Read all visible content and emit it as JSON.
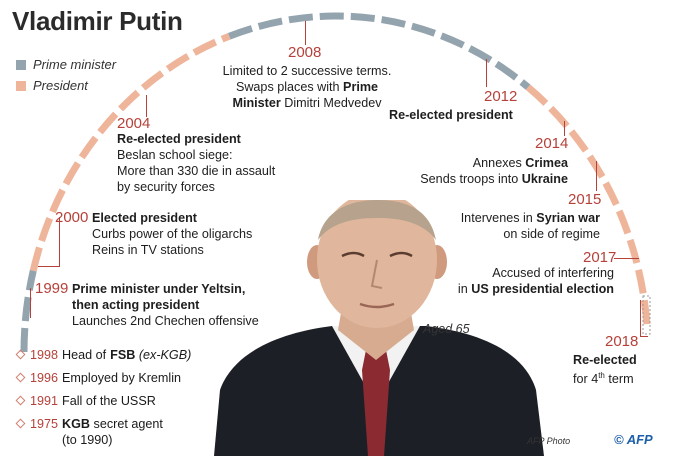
{
  "title": "Vladimir Putin",
  "legend": [
    {
      "label": "Prime minister",
      "color": "#94a4ae"
    },
    {
      "label": "President",
      "color": "#eeb59b"
    }
  ],
  "events": {
    "y1999": {
      "year": "1999",
      "line1": "Prime minister under Yeltsin,",
      "line2": "then acting president",
      "line3": "Launches 2nd Chechen offensive"
    },
    "y2000": {
      "year": "2000",
      "head": "Elected president",
      "line2": "Curbs power of the oligarchs",
      "line3": "Reins in TV stations"
    },
    "y2004": {
      "year": "2004",
      "head": "Re-elected president",
      "line2": "Beslan school siege:",
      "line3": "More than 330 die in assault",
      "line4": "by security forces"
    },
    "y2008": {
      "year": "2008",
      "line1": "Limited to 2 successive terms.",
      "line2a": "Swaps places with ",
      "line2b": "Prime",
      "line3a": "Minister",
      "line3b": " Dimitri Medvedev"
    },
    "y2012": {
      "year": "2012",
      "head": "Re-elected president"
    },
    "y2014": {
      "year": "2014",
      "line1a": "Annexes ",
      "line1b": "Crimea",
      "line2a": "Sends troops into ",
      "line2b": "Ukraine"
    },
    "y2015": {
      "year": "2015",
      "line1a": "Intervenes in ",
      "line1b": "Syrian war",
      "line2": "on side of regime"
    },
    "y2017": {
      "year": "2017",
      "line1": "Accused of interfering",
      "line2a": "in ",
      "line2b": "US presidential election"
    },
    "y2018": {
      "year": "2018",
      "line1": "Re-elected",
      "line2a": "for 4",
      "line2sup": "th",
      "line2b": " term"
    }
  },
  "bullets": [
    {
      "year": "1998",
      "bold": "FSB",
      "rest": " (ex-KGB)"
    },
    {
      "year": "1996",
      "bold": "",
      "rest": "Employed by Kremlin"
    },
    {
      "year": "1991",
      "bold": "",
      "rest": "Fall of the USSR"
    },
    {
      "year": "1975",
      "bold": "KGB",
      "rest": " secret agent",
      "line2": "(to 1990)"
    }
  ],
  "photo_caption": "Aged 65",
  "credit": "AFP Photo",
  "logo": "© AFP",
  "colors": {
    "president": "#eeb59b",
    "prime_minister": "#94a4ae",
    "year_red": "#b5413a"
  }
}
